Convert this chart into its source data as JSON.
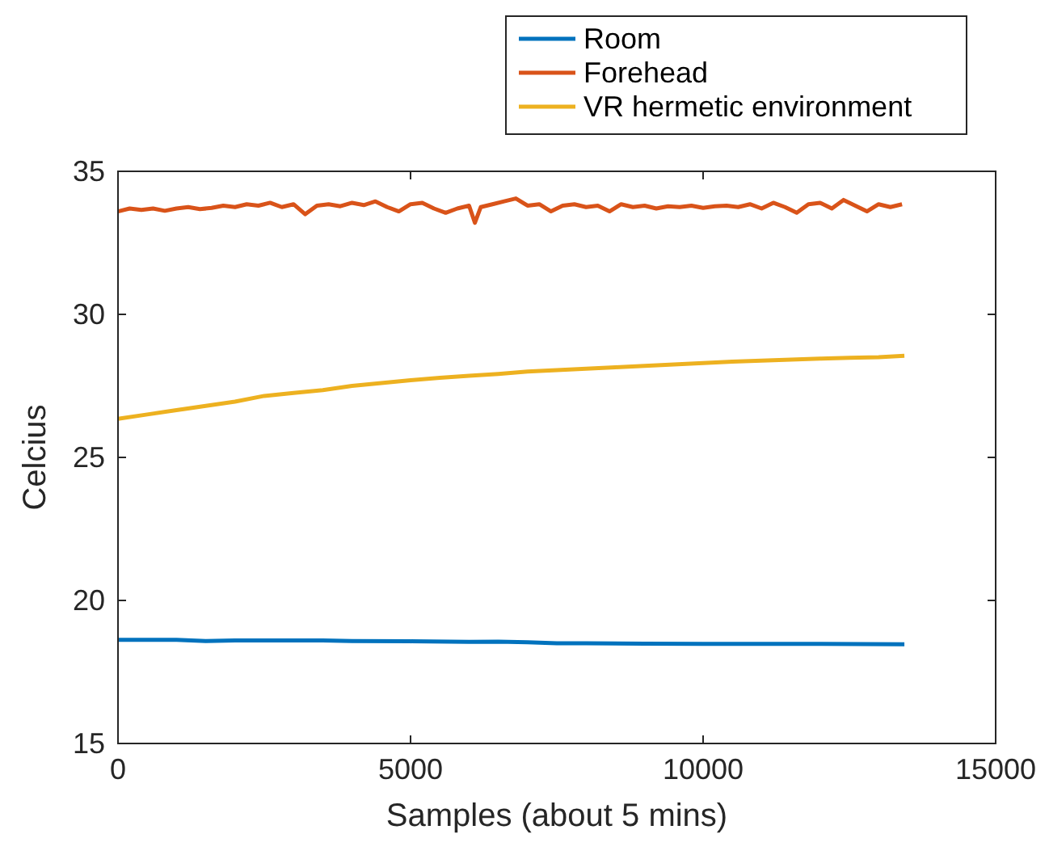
{
  "chart_data": {
    "type": "line",
    "xlabel": "Samples (about 5 mins)",
    "ylabel": "Celcius",
    "xlim": [
      0,
      15000
    ],
    "ylim": [
      15,
      35
    ],
    "xticks": [
      0,
      5000,
      10000,
      15000
    ],
    "yticks": [
      15,
      20,
      25,
      30,
      35
    ],
    "legend": "top right",
    "grid": false,
    "line_style": "solid",
    "marker": "none",
    "series": [
      {
        "name": "Room",
        "color": "#0072bd",
        "x": [
          0,
          1000,
          1500,
          2000,
          3000,
          3500,
          4000,
          5000,
          6000,
          6500,
          7000,
          7500,
          8000,
          9000,
          10000,
          11000,
          12000,
          13440
        ],
        "values": [
          18.62,
          18.62,
          18.58,
          18.6,
          18.6,
          18.6,
          18.58,
          18.57,
          18.55,
          18.56,
          18.54,
          18.5,
          18.5,
          18.49,
          18.48,
          18.48,
          18.48,
          18.47
        ]
      },
      {
        "name": "Forehead",
        "color": "#d95319",
        "x": [
          0,
          200,
          400,
          600,
          800,
          1000,
          1200,
          1400,
          1600,
          1800,
          2000,
          2200,
          2400,
          2600,
          2800,
          3000,
          3200,
          3400,
          3600,
          3800,
          4000,
          4200,
          4400,
          4600,
          4800,
          5000,
          5200,
          5400,
          5600,
          5800,
          6000,
          6100,
          6200,
          6400,
          6600,
          6800,
          7000,
          7200,
          7400,
          7600,
          7800,
          8000,
          8200,
          8400,
          8600,
          8800,
          9000,
          9200,
          9400,
          9600,
          9800,
          10000,
          10200,
          10400,
          10600,
          10800,
          11000,
          11200,
          11400,
          11600,
          11800,
          12000,
          12200,
          12400,
          12600,
          12800,
          13000,
          13200,
          13400
        ],
        "values": [
          33.6,
          33.7,
          33.65,
          33.7,
          33.62,
          33.7,
          33.75,
          33.68,
          33.72,
          33.8,
          33.75,
          33.85,
          33.8,
          33.9,
          33.75,
          33.85,
          33.5,
          33.8,
          33.85,
          33.78,
          33.9,
          33.82,
          33.95,
          33.75,
          33.6,
          33.85,
          33.9,
          33.7,
          33.55,
          33.7,
          33.8,
          33.2,
          33.75,
          33.85,
          33.95,
          34.05,
          33.8,
          33.85,
          33.6,
          33.8,
          33.85,
          33.75,
          33.8,
          33.6,
          33.85,
          33.75,
          33.8,
          33.7,
          33.78,
          33.75,
          33.8,
          33.72,
          33.78,
          33.8,
          33.75,
          33.85,
          33.7,
          33.9,
          33.75,
          33.55,
          33.85,
          33.9,
          33.7,
          34.0,
          33.8,
          33.6,
          33.85,
          33.75,
          33.85
        ]
      },
      {
        "name": "VR hermetic environment",
        "color": "#edb120",
        "x": [
          0,
          500,
          1000,
          1500,
          2000,
          2500,
          3000,
          3500,
          4000,
          4500,
          5000,
          5500,
          6000,
          6500,
          7000,
          7500,
          8000,
          8500,
          9000,
          9500,
          10000,
          10500,
          11000,
          11500,
          12000,
          12500,
          13000,
          13440
        ],
        "values": [
          26.35,
          26.5,
          26.65,
          26.8,
          26.95,
          27.15,
          27.25,
          27.35,
          27.5,
          27.6,
          27.7,
          27.78,
          27.85,
          27.92,
          28.0,
          28.05,
          28.1,
          28.15,
          28.2,
          28.25,
          28.3,
          28.35,
          28.38,
          28.42,
          28.45,
          28.48,
          28.5,
          28.55
        ]
      }
    ]
  }
}
